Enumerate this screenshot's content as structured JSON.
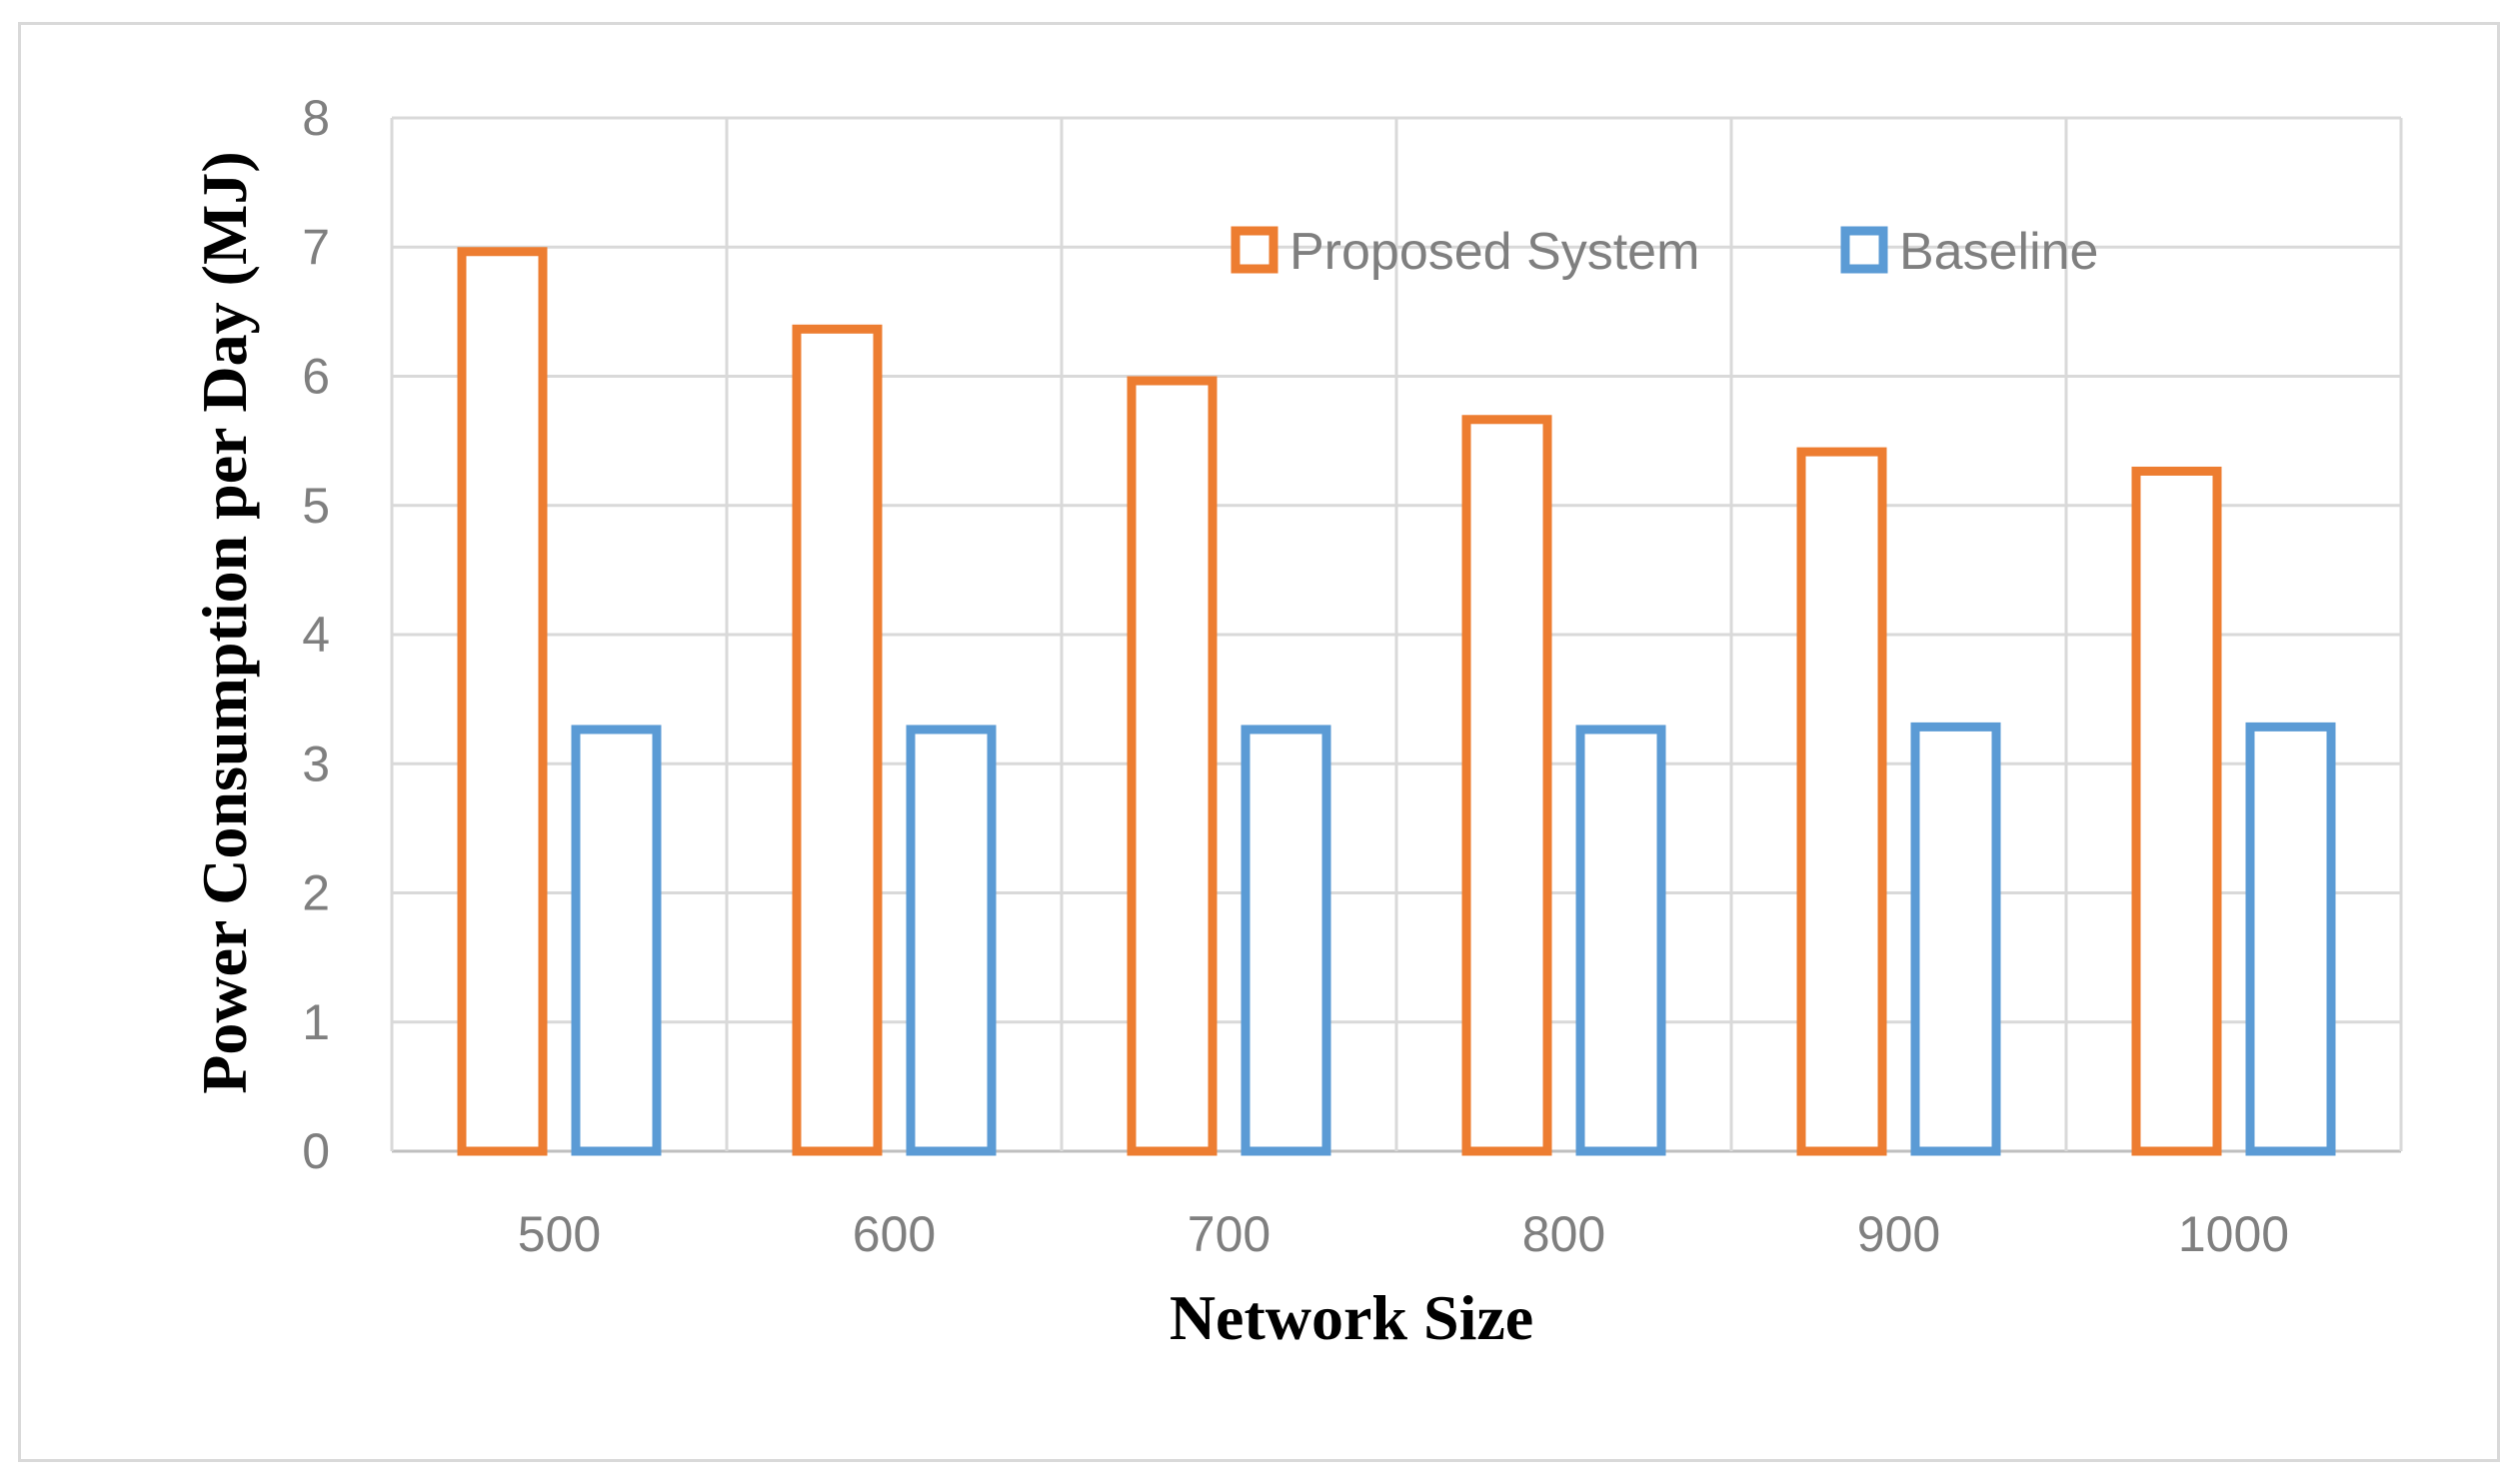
{
  "chart_data": {
    "type": "bar",
    "title": "",
    "xlabel": "Network Size",
    "ylabel": "Power Consumption per Day (MJ)",
    "categories": [
      "500",
      "600",
      "700",
      "800",
      "900",
      "1000"
    ],
    "series": [
      {
        "name": "Proposed System",
        "values": [
          7.0,
          6.4,
          6.0,
          5.7,
          5.45,
          5.3
        ],
        "color": "#ed7d31"
      },
      {
        "name": "Baseline",
        "values": [
          3.3,
          3.3,
          3.3,
          3.3,
          3.32,
          3.32
        ],
        "color": "#5b9bd5"
      }
    ],
    "ylim": [
      0,
      8
    ],
    "yticks": [
      "0",
      "1",
      "2",
      "3",
      "4",
      "5",
      "6",
      "7",
      "8"
    ],
    "grid": true,
    "legend_position": "top-right",
    "bar_style": "outline"
  }
}
